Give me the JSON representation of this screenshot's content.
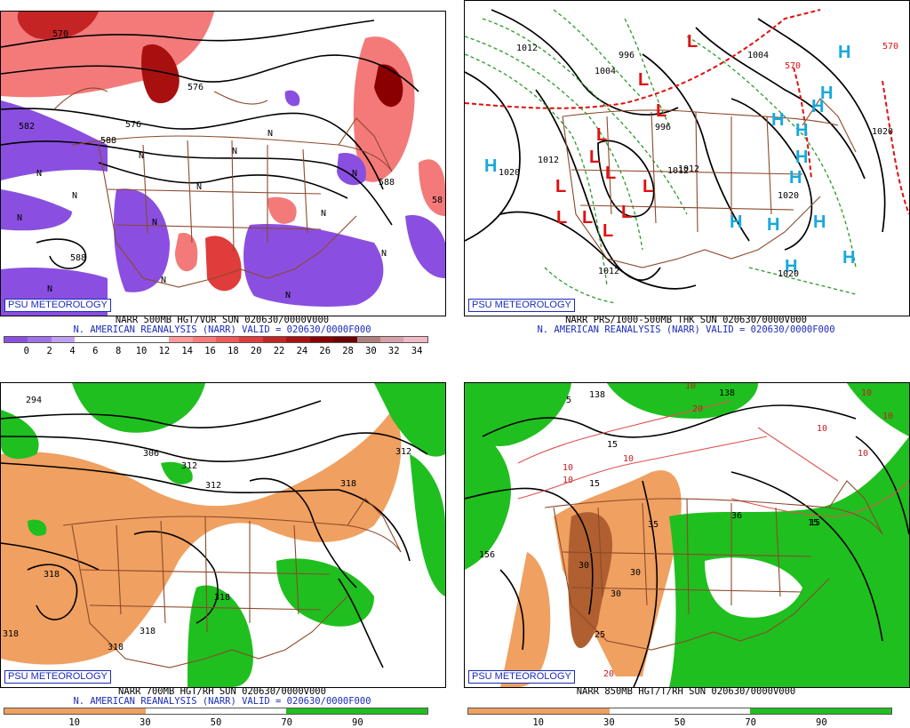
{
  "panels": [
    {
      "logo": "PSU METEOROLOGY",
      "title_line1": "NARR 500MB HGT/VOR SUN 020630/0000V000",
      "title_line2": "N. AMERICAN REANALYSIS (NARR) VALID = 020630/0000F000",
      "colorbar": {
        "labels": [
          "0",
          "2",
          "4",
          "6",
          "8",
          "10",
          "12",
          "14",
          "16",
          "18",
          "20",
          "22",
          "24",
          "26",
          "28",
          "30",
          "32",
          "34"
        ],
        "colors": [
          "#8a4fe0",
          "#a072e8",
          "#bfa0f0",
          "#ffffff",
          "#ffffff",
          "#ffffff",
          "#ffffff",
          "#ff9a9a",
          "#ff7a7a",
          "#f05a5a",
          "#e03c3c",
          "#c42424",
          "#a81010",
          "#8a0000",
          "#6e0000",
          "#b08080",
          "#d8a0a8",
          "#f2b8c6"
        ]
      },
      "labels": [
        "570",
        "576",
        "582",
        "588",
        "588",
        "576",
        "588",
        "N",
        "N",
        "N",
        "N",
        "N",
        "N",
        "N",
        "N",
        "N",
        "N",
        "N",
        "N",
        "N",
        "N",
        "58"
      ]
    },
    {
      "logo": "PSU METEOROLOGY",
      "title_line1": "NARR PRS/1000-500MB THK SUN 020630/0000V000",
      "title_line2": "N. AMERICAN REANALYSIS (NARR) VALID = 020630/0000F000",
      "labels": [
        "1012",
        "1004",
        "996",
        "996",
        "1004",
        "1020",
        "1012",
        "1012",
        "1012",
        "1020",
        "1020",
        "1020",
        "570",
        "570",
        "1012"
      ]
    },
    {
      "logo": "PSU METEOROLOGY",
      "title_line1": "NARR 700MB HGT/RH SUN 020630/0000V000",
      "title_line2": "N. AMERICAN REANALYSIS (NARR) VALID = 020630/0000F000",
      "colorbar": {
        "labels": [
          "10",
          "30",
          "50",
          "70",
          "90"
        ],
        "colors": [
          "#f0a060",
          "#f0a060",
          "#ffffff",
          "#ffffff",
          "#1fbf1f",
          "#1fbf1f"
        ]
      },
      "labels": [
        "294",
        "306",
        "312",
        "312",
        "318",
        "318",
        "318",
        "318",
        "318",
        "318",
        "312"
      ]
    },
    {
      "logo": "PSU METEOROLOGY",
      "title_line1": "NARR 850MB HGT/T/RH SUN 020630/0000V000",
      "title_line2": "",
      "colorbar": {
        "labels": [
          "10",
          "30",
          "50",
          "70",
          "90"
        ],
        "colors": [
          "#f0a060",
          "#f0a060",
          "#ffffff",
          "#ffffff",
          "#1fbf1f",
          "#1fbf1f"
        ]
      },
      "labels": [
        "138",
        "138",
        "5",
        "10",
        "10",
        "15",
        "15",
        "10",
        "10",
        "20",
        "35",
        "30",
        "30",
        "30",
        "25",
        "20",
        "15",
        "156",
        "36",
        "10",
        "10",
        "10",
        "15",
        "10"
      ]
    }
  ]
}
